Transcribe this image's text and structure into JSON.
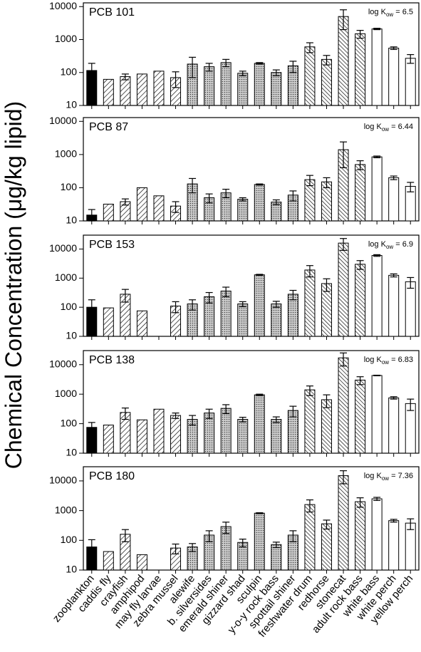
{
  "y_label": "Chemical Concentration (μg/kg lipid)",
  "categories": [
    "zooplankton",
    "caddis fly",
    "crayfish",
    "amphipod",
    "may fly larvae",
    "zebra mussel",
    "alewife",
    "b. silversides",
    "emerald shiner",
    "gizzard shad",
    "sculpin",
    "y-o-y rock bass",
    "spottail shiner",
    "freshwater drum",
    "redhorse",
    "stonecat",
    "adult rock bass",
    "white bass",
    "white perch",
    "yellow perch"
  ],
  "bar_styles": [
    "black",
    "hatch",
    "hatch",
    "hatch",
    "hatch",
    "hatch",
    "cross",
    "cross",
    "cross",
    "cross",
    "cross",
    "cross",
    "cross",
    "hatch2",
    "hatch2",
    "hatch2",
    "hatch2",
    "white",
    "white",
    "white"
  ],
  "chart_data": [
    {
      "type": "bar",
      "title": "PCB 101",
      "annotation": [
        "log K",
        "ow",
        " = 6.5"
      ],
      "log_y": true,
      "ylim": [
        10,
        13000
      ],
      "yticks": [
        10,
        100,
        1000,
        10000
      ],
      "values": [
        115,
        62,
        75,
        90,
        110,
        70,
        180,
        150,
        200,
        95,
        190,
        100,
        160,
        600,
        250,
        5000,
        1500,
        2100,
        550,
        270
      ],
      "errors": [
        75,
        null,
        15,
        null,
        null,
        35,
        110,
        40,
        50,
        15,
        10,
        20,
        60,
        200,
        80,
        3000,
        400,
        100,
        50,
        80
      ]
    },
    {
      "type": "bar",
      "title": "PCB 87",
      "annotation": [
        "log K",
        "ow",
        " = 6.44"
      ],
      "log_y": true,
      "ylim": [
        10,
        13000
      ],
      "yticks": [
        10,
        100,
        1000,
        10000
      ],
      "values": [
        15,
        32,
        38,
        100,
        57,
        28,
        130,
        50,
        70,
        45,
        125,
        37,
        60,
        175,
        150,
        1400,
        500,
        850,
        200,
        110
      ],
      "errors": [
        7,
        null,
        8,
        null,
        null,
        10,
        60,
        15,
        20,
        5,
        5,
        6,
        20,
        60,
        50,
        1000,
        150,
        50,
        25,
        35
      ]
    },
    {
      "type": "bar",
      "title": "PCB 153",
      "annotation": [
        "log K",
        "ow",
        " = 6.9"
      ],
      "log_y": true,
      "ylim": [
        10,
        30000
      ],
      "yticks": [
        10,
        100,
        1000,
        10000
      ],
      "values": [
        100,
        95,
        280,
        75,
        null,
        110,
        130,
        230,
        360,
        130,
        1300,
        130,
        280,
        1900,
        650,
        16000,
        3000,
        6000,
        1250,
        750
      ],
      "errors": [
        80,
        null,
        130,
        null,
        null,
        45,
        50,
        90,
        130,
        25,
        50,
        30,
        100,
        800,
        300,
        7000,
        1000,
        400,
        150,
        300
      ]
    },
    {
      "type": "bar",
      "title": "PCB 138",
      "annotation": [
        "log K",
        "ow",
        " = 6.83"
      ],
      "log_y": true,
      "ylim": [
        10,
        30000
      ],
      "yticks": [
        10,
        100,
        1000,
        10000
      ],
      "values": [
        75,
        90,
        240,
        135,
        310,
        190,
        140,
        230,
        330,
        140,
        950,
        140,
        280,
        1400,
        650,
        17000,
        3000,
        4300,
        750,
        480
      ],
      "errors": [
        35,
        null,
        100,
        null,
        null,
        40,
        50,
        80,
        110,
        25,
        50,
        30,
        110,
        500,
        300,
        8000,
        900,
        100,
        70,
        200
      ]
    },
    {
      "type": "bar",
      "title": "PCB 180",
      "annotation": [
        "log K",
        "ow",
        " = 7.36"
      ],
      "log_y": true,
      "ylim": [
        10,
        30000
      ],
      "yticks": [
        10,
        100,
        1000,
        10000
      ],
      "values": [
        60,
        42,
        160,
        33,
        null,
        55,
        60,
        150,
        290,
        85,
        820,
        72,
        150,
        1600,
        360,
        15000,
        2000,
        2500,
        460,
        380
      ],
      "errors": [
        45,
        null,
        70,
        null,
        null,
        20,
        18,
        60,
        120,
        25,
        30,
        15,
        60,
        700,
        120,
        7000,
        700,
        300,
        50,
        150
      ]
    }
  ]
}
